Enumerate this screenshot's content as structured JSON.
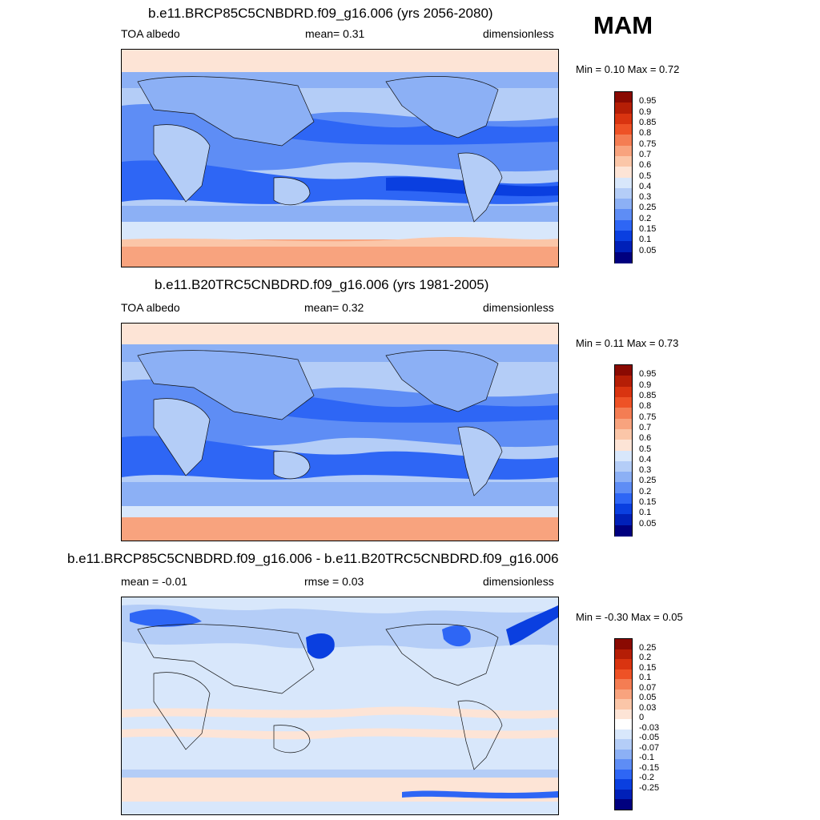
{
  "season": "MAM",
  "palette_abs": [
    "#00007f",
    "#0020b8",
    "#0a3fe0",
    "#2e66f5",
    "#5e8df5",
    "#8cb0f5",
    "#b4cdf7",
    "#d8e7fb",
    "#fde4d6",
    "#fbc6a8",
    "#f8a37e",
    "#f47d53",
    "#ee5226",
    "#d93410",
    "#b51e06",
    "#8a0a02"
  ],
  "palette_diff": [
    "#00007f",
    "#0020b8",
    "#0a3fe0",
    "#2e66f5",
    "#5e8df5",
    "#8cb0f5",
    "#b4cdf7",
    "#d8e7fb",
    "#ffffff",
    "#fde4d6",
    "#fbc6a8",
    "#f8a37e",
    "#f47d53",
    "#ee5226",
    "#d93410",
    "#b51e06",
    "#8a0a02"
  ],
  "panels": [
    {
      "title": "b.e11.BRCP85C5CNBDRD.f09_g16.006 (yrs 2056-2080)",
      "left_label": "TOA albedo",
      "mid_label": "mean=   0.31",
      "right_label": "dimensionless",
      "minmax": "Min =   0.10 Max =   0.72",
      "levels": [
        "0.95",
        "0.9",
        "0.85",
        "0.8",
        "0.75",
        "0.7",
        "0.6",
        "0.5",
        "0.4",
        "0.3",
        "0.25",
        "0.2",
        "0.15",
        "0.1",
        "0.05"
      ]
    },
    {
      "title": "b.e11.B20TRC5CNBDRD.f09_g16.006 (yrs 1981-2005)",
      "left_label": "TOA albedo",
      "mid_label": "mean=   0.32",
      "right_label": "dimensionless",
      "minmax": "Min =   0.11 Max =   0.73",
      "levels": [
        "0.95",
        "0.9",
        "0.85",
        "0.8",
        "0.75",
        "0.7",
        "0.6",
        "0.5",
        "0.4",
        "0.3",
        "0.25",
        "0.2",
        "0.15",
        "0.1",
        "0.05"
      ]
    },
    {
      "title": "b.e11.BRCP85C5CNBDRD.f09_g16.006 - b.e11.B20TRC5CNBDRD.f09_g16.006",
      "left_label": "mean =  -0.01",
      "mid_label": "rmse =   0.03",
      "right_label": "dimensionless",
      "minmax": "Min =  -0.30 Max =   0.05",
      "levels": [
        "0.25",
        "0.2",
        "0.15",
        "0.1",
        "0.07",
        "0.05",
        "0.03",
        "0",
        "-0.03",
        "-0.05",
        "-0.07",
        "-0.1",
        "-0.15",
        "-0.2",
        "-0.25"
      ]
    }
  ]
}
